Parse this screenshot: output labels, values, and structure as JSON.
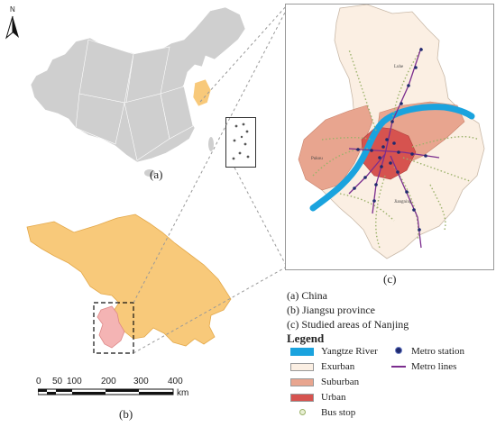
{
  "north": {
    "letter": "N",
    "icon": "north-arrow-icon"
  },
  "panels": {
    "a": "(a)",
    "b": "(b)",
    "c": "(c)"
  },
  "captions": [
    "(a) China",
    "(b) Jiangsu province",
    "(c) Studied areas of Nanjing"
  ],
  "legend": {
    "title": "Legend",
    "items": [
      {
        "label": "Yangtze River",
        "color": "#1aa3de",
        "icon": "river-swatch"
      },
      {
        "label": "Exurban",
        "color": "#fbefe3",
        "icon": "area-swatch"
      },
      {
        "label": "Suburban",
        "color": "#e8a58f",
        "icon": "area-swatch"
      },
      {
        "label": "Urban",
        "color": "#d6534f",
        "icon": "area-swatch"
      },
      {
        "label": "Bus stop",
        "color": "#9bb26a",
        "icon": "bus-stop-dot"
      },
      {
        "label": "Metro station",
        "color": "#1f2a6e",
        "icon": "metro-station-dot"
      },
      {
        "label": "Metro lines",
        "color": "#7b2d8e",
        "icon": "metro-line-swatch"
      }
    ]
  },
  "scale": {
    "ticks": [
      "0",
      "50",
      "100",
      "200",
      "300",
      "400"
    ],
    "unit": "km"
  },
  "place_labels": [
    "Luhe",
    "Pukou",
    "Jiangning"
  ],
  "colors": {
    "china": "#cfcfcf",
    "jiangsu": "#f8c97a",
    "nanjing": "#f4b4b4",
    "inset_frame": "#999999"
  }
}
